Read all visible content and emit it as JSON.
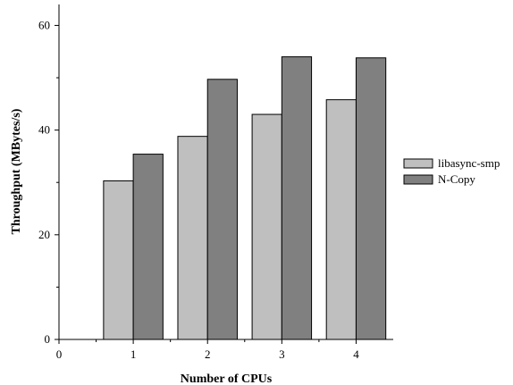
{
  "chart_data": {
    "type": "bar",
    "title": "",
    "xlabel": "Number of CPUs",
    "ylabel": "Throughput (MBytes/s)",
    "x_ticks": [
      "0",
      "1",
      "2",
      "3",
      "4"
    ],
    "categories": [
      "1",
      "2",
      "3",
      "4"
    ],
    "y_ticks": [
      "0",
      "20",
      "40",
      "60"
    ],
    "ylim": [
      0,
      64
    ],
    "xlim": [
      0,
      4.5
    ],
    "grid": false,
    "legend_position": "right",
    "series": [
      {
        "name": "libasync-smp",
        "color": "#bfbfbf",
        "values": [
          30.3,
          38.8,
          43.0,
          45.8
        ]
      },
      {
        "name": "N-Copy",
        "color": "#808080",
        "values": [
          35.4,
          49.7,
          54.0,
          53.8
        ]
      }
    ]
  }
}
